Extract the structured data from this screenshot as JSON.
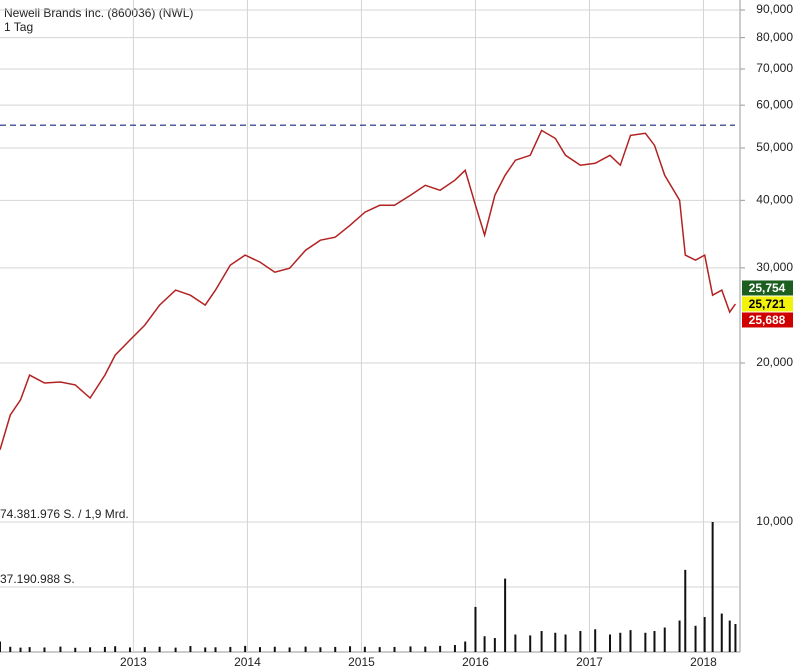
{
  "chart_data": [
    {
      "type": "line",
      "title": "Newell Brands Inc. (860036) (NWL)",
      "subtitle": "1 Tag",
      "log_scale": true,
      "grid": true,
      "color": "#b22222",
      "x": [
        2011.83,
        2011.92,
        2012.01,
        2012.09,
        2012.22,
        2012.36,
        2012.49,
        2012.62,
        2012.75,
        2012.84,
        2012.97,
        2013.1,
        2013.23,
        2013.37,
        2013.5,
        2013.63,
        2013.72,
        2013.85,
        2013.98,
        2014.11,
        2014.24,
        2014.37,
        2014.51,
        2014.64,
        2014.77,
        2014.9,
        2015.03,
        2015.16,
        2015.29,
        2015.43,
        2015.56,
        2015.69,
        2015.82,
        2015.91,
        2016.0,
        2016.08,
        2016.17,
        2016.26,
        2016.35,
        2016.48,
        2016.58,
        2016.7,
        2016.79,
        2016.92,
        2017.05,
        2017.18,
        2017.27,
        2017.36,
        2017.49,
        2017.57,
        2017.66,
        2017.79,
        2017.84,
        2017.93,
        2018.01,
        2018.08,
        2018.16,
        2018.23,
        2018.28
      ],
      "values": [
        13.82,
        16.03,
        17.09,
        19.0,
        18.37,
        18.45,
        18.22,
        17.23,
        19.0,
        20.69,
        22.06,
        23.51,
        25.6,
        27.29,
        26.7,
        25.6,
        27.29,
        30.35,
        31.68,
        30.74,
        29.45,
        29.96,
        32.35,
        33.75,
        34.18,
        35.97,
        38.03,
        39.17,
        39.17,
        40.89,
        42.64,
        41.75,
        43.58,
        45.46,
        39.17,
        34.49,
        40.89,
        44.51,
        47.45,
        48.46,
        53.88,
        52.08,
        48.46,
        46.45,
        46.83,
        48.46,
        46.45,
        52.75,
        53.22,
        50.58,
        44.51,
        40.03,
        31.68,
        30.99,
        31.68,
        26.7,
        27.29,
        24.85,
        25.721
      ],
      "xlim": [
        2011.83,
        2018.32
      ],
      "xticks": [
        2013,
        2014,
        2015,
        2016,
        2017,
        2018
      ],
      "ylim": [
        10.16,
        90.77
      ],
      "yticks": [
        {
          "value": 20,
          "label": "20,000"
        },
        {
          "value": 30,
          "label": "30,000"
        },
        {
          "value": 40,
          "label": "40,000"
        },
        {
          "value": 50,
          "label": "50,000"
        },
        {
          "value": 60,
          "label": "60,000"
        },
        {
          "value": 70,
          "label": "70,000"
        },
        {
          "value": 80,
          "label": "80,000"
        },
        {
          "value": 90,
          "label": "90,000"
        }
      ],
      "reference_line": 55.1,
      "price_labels": [
        {
          "value": 25.754,
          "label": "25,754",
          "color": "#1b5e20"
        },
        {
          "value": 25.721,
          "label": "25,721",
          "color": "#f2f20a"
        },
        {
          "value": 25.688,
          "label": "25,688",
          "color": "#d00000"
        }
      ]
    },
    {
      "type": "bar",
      "color": "#111111",
      "right_label": "10,000",
      "x": [
        2011.83,
        2011.92,
        2012.01,
        2012.09,
        2012.22,
        2012.36,
        2012.49,
        2012.62,
        2012.75,
        2012.84,
        2012.97,
        2013.1,
        2013.23,
        2013.37,
        2013.5,
        2013.63,
        2013.72,
        2013.85,
        2013.98,
        2014.11,
        2014.24,
        2014.37,
        2014.51,
        2014.64,
        2014.77,
        2014.9,
        2015.03,
        2015.16,
        2015.29,
        2015.43,
        2015.56,
        2015.69,
        2015.82,
        2015.91,
        2016.0,
        2016.08,
        2016.17,
        2016.26,
        2016.35,
        2016.48,
        2016.58,
        2016.7,
        2016.79,
        2016.92,
        2017.05,
        2017.18,
        2017.27,
        2017.36,
        2017.49,
        2017.57,
        2017.66,
        2017.79,
        2017.84,
        2017.93,
        2018.01,
        2018.08,
        2018.16,
        2018.23,
        2018.28
      ],
      "values": [
        6000000,
        3000000,
        2500000,
        2800000,
        2600000,
        3100000,
        2400000,
        2700000,
        2900000,
        3300000,
        2600000,
        2800000,
        3000000,
        2500000,
        3400000,
        2600000,
        2700000,
        2900000,
        3500000,
        2800000,
        3000000,
        2600000,
        3100000,
        2700000,
        2900000,
        3300000,
        3000000,
        2800000,
        2900000,
        3200000,
        3100000,
        3500000,
        4000000,
        6000000,
        25800000,
        9000000,
        8000000,
        42000000,
        10000000,
        9500000,
        12000000,
        11000000,
        10000000,
        12000000,
        13000000,
        10000000,
        11000000,
        12500000,
        11000000,
        12000000,
        14000000,
        18000000,
        47000000,
        15000000,
        20000000,
        74381976,
        22000000,
        18000000,
        16000000
      ],
      "ylim": [
        0,
        74381976
      ],
      "yticks": [
        {
          "value": 74381976,
          "label": "74.381.976 S. / 1,9 Mrd."
        },
        {
          "value": 37190988,
          "label": "37.190.988 S."
        }
      ]
    }
  ]
}
